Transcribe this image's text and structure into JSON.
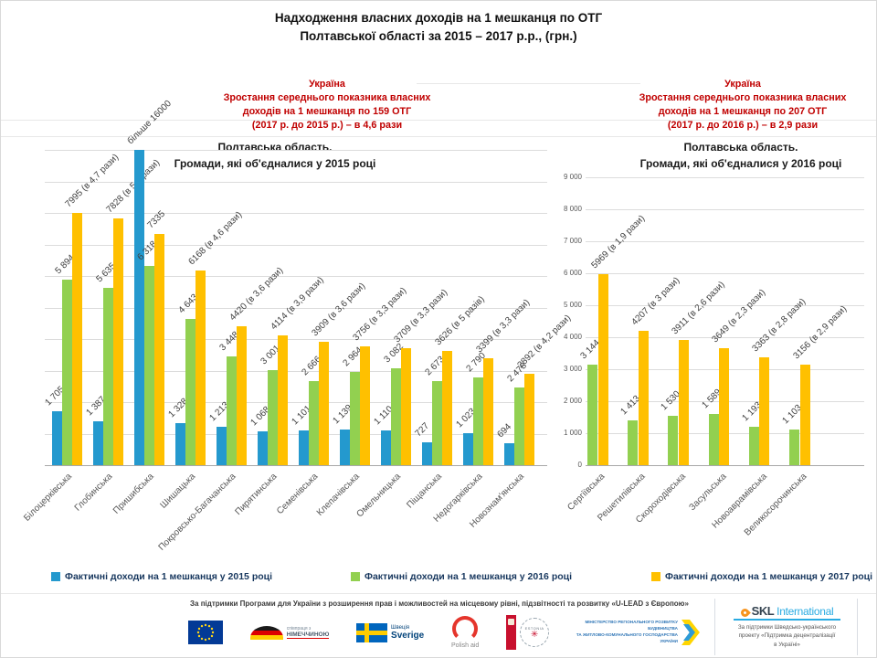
{
  "title": {
    "line1": "Надходження власних доходів на 1 мешканця по ОТГ",
    "line2": "Полтавської області за 2015 – 2017 р.р., (грн.)"
  },
  "headers": {
    "left": {
      "country": "Україна",
      "growth_line1": "Зростання середнього показника власних",
      "growth_line2_prefix": "доходів на 1 мешканця по ",
      "growth_line2_count": "159",
      "growth_line2_suffix": " ОТГ",
      "growth_line3": "(2017 р. до 2015 р.) – в 4,6 рази",
      "region": "Полтавська область.",
      "subtitle": "Громади, які об'єдналися у 2015 році"
    },
    "right": {
      "country": "Україна",
      "growth_line1": "Зростання середнього показника власних",
      "growth_line2_prefix": "доходів на 1 мешканця по ",
      "growth_line2_count": "207",
      "growth_line2_suffix": " ОТГ",
      "growth_line3": "(2017 р. до 2016 р.) – в 2,9 рази",
      "region": "Полтавська область.",
      "subtitle": "Громади, які об'єдналися у 2016 році"
    }
  },
  "chart_data": [
    {
      "type": "bar",
      "title": "Полтавська область. Громади, які об'єдналися у 2015 році",
      "categories": [
        "Білоцерківська",
        "Глобинська",
        "Пришибська",
        "Шишацька",
        "Покровсько-Багачанська",
        "Пирятинська",
        "Семенівська",
        "Клепачівська",
        "Омельницька",
        "Піщанська",
        "Недогарківська",
        "Новознам'янська"
      ],
      "series": [
        {
          "name": "Фактичні доходи на 1 мешканця у 2015 році",
          "color": "#2499CE",
          "values": [
            1705,
            1387,
            16000,
            1328,
            1213,
            1068,
            1101,
            1139,
            1110,
            727,
            1023,
            694
          ],
          "labels": [
            "1 705",
            "1 387",
            "більше 16000",
            "1 328",
            "1 213",
            "1 068",
            "1 101",
            "1 139",
            "1 110",
            "727",
            "1 023",
            "694"
          ]
        },
        {
          "name": "Фактичні доходи на 1 мешканця у 2016 році",
          "color": "#92D050",
          "values": [
            5894,
            5635,
            6318,
            4643,
            3448,
            3001,
            2666,
            2964,
            3082,
            2673,
            2790,
            2478
          ],
          "labels": [
            "5 894",
            "5 635",
            "6 318",
            "4 643",
            "3 448",
            "3 001",
            "2 666",
            "2 964",
            "3 082",
            "2 673",
            "2 790",
            "2 478"
          ]
        },
        {
          "name": "Фактичні доходи на 1 мешканця у 2017 році",
          "color": "#FFC000",
          "values": [
            7995,
            7828,
            7335,
            6168,
            4420,
            4114,
            3909,
            3756,
            3709,
            3626,
            3399,
            2892
          ],
          "labels": [
            "7995 (в 4,7 рази)",
            "7828 (в 5,6 рази)",
            "7335",
            "6168 (в 4,6 рази)",
            "4420 (в 3,6 рази)",
            "4114 (в 3,9 рази)",
            "3909 (в 3,6 рази)",
            "3756 (в 3,3 рази)",
            "3709 (в 3,3 рази)",
            "3626 (в 5 разів)",
            "3399 (в 3,3 рази)",
            "2892 (в 4,2 рази)"
          ]
        }
      ],
      "ylim": [
        0,
        10000
      ],
      "grid": true,
      "note": "Пришибська 2015: більше 16000 — бар обрізано на верхній межі шкали"
    },
    {
      "type": "bar",
      "title": "Полтавська область. Громади, які об'єдналися у 2016 році",
      "categories": [
        "Сергіївська",
        "Решетилівська",
        "Скороходівська",
        "Засульська",
        "Новоаврамівська",
        "Великосорочинська"
      ],
      "series": [
        {
          "name": "Фактичні доходи на 1 мешканця у 2016 році",
          "color": "#92D050",
          "values": [
            3144,
            1413,
            1530,
            1589,
            1193,
            1103
          ],
          "labels": [
            "3 144",
            "1 413",
            "1 530",
            "1 589",
            "1 193",
            "1 103"
          ]
        },
        {
          "name": "Фактичні доходи на 1 мешканця у 2017 році",
          "color": "#FFC000",
          "values": [
            5969,
            4207,
            3911,
            3649,
            3363,
            3156
          ],
          "labels": [
            "5969 (в 1,9 рази)",
            "4207 (в 3 рази)",
            "3911 (в 2,6 рази)",
            "3649 (в 2,3 рази)",
            "3363 (в 2,8 рази)",
            "3156 (в 2,9 рази)"
          ]
        }
      ],
      "ylim": [
        0,
        9000
      ],
      "grid": true,
      "yticks": [
        "0",
        "1 000",
        "2 000",
        "3 000",
        "4 000",
        "5 000",
        "6 000",
        "7 000",
        "8 000",
        "9 000"
      ]
    }
  ],
  "legend": {
    "items": [
      {
        "color": "#2499CE",
        "label": "Фактичні доходи на 1 мешканця у 2015 році"
      },
      {
        "color": "#92D050",
        "label": "Фактичні доходи на 1 мешканця у 2016 році"
      },
      {
        "color": "#FFC000",
        "label": "Фактичні доходи на 1 мешканця у 2017 році"
      }
    ]
  },
  "footer": {
    "support_text": "За підтримки Програми для України з розширення прав і можливостей на місцевому рівні, підзвітності та розвитку «U-LEAD з Європою»",
    "logos": {
      "germany_line1": "співпраця з",
      "germany_line2": "НІМЕЧЧИНОЮ",
      "sweden_line1": "Швеція",
      "sweden_line2": "Sverige",
      "poland": "Polish aid",
      "estonia": "ESTONIA",
      "estonia_star": "✳",
      "ministry_lines": [
        "МІНІСТЕРСТВО РЕГІОНАЛЬНОГО РОЗВИТКУ",
        "БУДІВНИЦТВА",
        "ТА ЖИТЛОВО-КОМУНАЛЬНОГО ГОСПОДАРСТВА",
        "УКРАЇНИ"
      ],
      "skl_name": "SKL",
      "skl_name2": "International",
      "skl_lines": [
        "За підтримки Шведсько-українського",
        "проекту «Підтримка децентралізації",
        "в Україні»"
      ]
    }
  }
}
